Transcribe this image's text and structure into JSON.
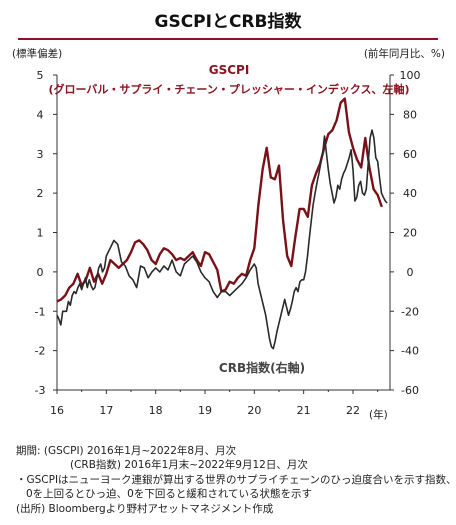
{
  "title": "GSCPIとCRB指数",
  "chart_data": {
    "type": "line",
    "left_axis_label": "(標準偏差)",
    "right_axis_label": "(前年同月比、%)",
    "x_unit_label": "(年)",
    "x_tick_labels": [
      "16",
      "17",
      "18",
      "19",
      "20",
      "21",
      "22"
    ],
    "left_ylim": [
      -3,
      5
    ],
    "left_ticks": [
      "5",
      "4",
      "3",
      "2",
      "1",
      "0",
      "-1",
      "-2",
      "-3"
    ],
    "right_ylim": [
      -60,
      100
    ],
    "right_ticks": [
      "100",
      "80",
      "60",
      "40",
      "20",
      "0",
      "-20",
      "-40",
      "-60"
    ],
    "grid": false,
    "annotations": {
      "gscpi_name": "GSCPI",
      "gscpi_desc": "(グローバル・サプライ・チェーン・プレッシャー・インデックス、左軸)",
      "crb_name": "CRB指数(右軸)"
    },
    "series": [
      {
        "name": "GSCPI",
        "axis": "left",
        "color": "#7a1018",
        "x": [
          2016.0,
          2016.083,
          2016.167,
          2016.25,
          2016.333,
          2016.417,
          2016.5,
          2016.583,
          2016.667,
          2016.75,
          2016.833,
          2016.917,
          2017.0,
          2017.083,
          2017.167,
          2017.25,
          2017.333,
          2017.417,
          2017.5,
          2017.583,
          2017.667,
          2017.75,
          2017.833,
          2017.917,
          2018.0,
          2018.083,
          2018.167,
          2018.25,
          2018.333,
          2018.417,
          2018.5,
          2018.583,
          2018.667,
          2018.75,
          2018.833,
          2018.917,
          2019.0,
          2019.083,
          2019.167,
          2019.25,
          2019.333,
          2019.417,
          2019.5,
          2019.583,
          2019.667,
          2019.75,
          2019.833,
          2019.917,
          2020.0,
          2020.083,
          2020.167,
          2020.25,
          2020.333,
          2020.417,
          2020.5,
          2020.583,
          2020.667,
          2020.75,
          2020.833,
          2020.917,
          2021.0,
          2021.083,
          2021.167,
          2021.25,
          2021.333,
          2021.417,
          2021.5,
          2021.583,
          2021.667,
          2021.75,
          2021.833,
          2021.917,
          2022.0,
          2022.083,
          2022.167,
          2022.25,
          2022.333,
          2022.417,
          2022.5,
          2022.583
        ],
        "values": [
          -0.75,
          -0.7,
          -0.6,
          -0.4,
          -0.3,
          -0.05,
          -0.35,
          -0.2,
          0.1,
          -0.25,
          -0.05,
          -0.3,
          -0.05,
          0.3,
          0.2,
          0.1,
          0.2,
          0.3,
          0.5,
          0.75,
          0.8,
          0.7,
          0.55,
          0.3,
          0.2,
          0.45,
          0.6,
          0.55,
          0.45,
          0.3,
          0.35,
          0.3,
          0.4,
          0.5,
          0.3,
          0.15,
          0.5,
          0.45,
          0.25,
          0.05,
          -0.5,
          -0.45,
          -0.25,
          -0.3,
          -0.15,
          -0.05,
          -0.1,
          0.3,
          0.6,
          1.7,
          2.6,
          3.15,
          2.4,
          2.35,
          2.7,
          1.3,
          0.4,
          0.15,
          0.9,
          1.6,
          1.6,
          1.4,
          2.2,
          2.5,
          2.75,
          3.15,
          3.5,
          3.6,
          3.85,
          4.3,
          4.4,
          3.55,
          3.15,
          2.85,
          2.65,
          3.4,
          2.65,
          2.1,
          1.95,
          1.65
        ]
      },
      {
        "name": "CRB指数",
        "axis": "right",
        "color": "#2a2a2a",
        "x": [
          2016.0,
          2016.038,
          2016.077,
          2016.115,
          2016.154,
          2016.192,
          2016.231,
          2016.269,
          2016.308,
          2016.346,
          2016.385,
          2016.423,
          2016.462,
          2016.5,
          2016.538,
          2016.577,
          2016.615,
          2016.654,
          2016.692,
          2016.731,
          2016.769,
          2016.808,
          2016.846,
          2016.885,
          2016.923,
          2016.962,
          2017.0,
          2017.077,
          2017.154,
          2017.231,
          2017.308,
          2017.385,
          2017.462,
          2017.538,
          2017.615,
          2017.692,
          2017.769,
          2017.846,
          2017.923,
          2018.0,
          2018.083,
          2018.167,
          2018.25,
          2018.333,
          2018.417,
          2018.5,
          2018.583,
          2018.667,
          2018.75,
          2018.833,
          2018.917,
          2019.0,
          2019.083,
          2019.167,
          2019.25,
          2019.333,
          2019.417,
          2019.5,
          2019.583,
          2019.667,
          2019.75,
          2019.833,
          2019.917,
          2020.0,
          2020.038,
          2020.077,
          2020.115,
          2020.154,
          2020.192,
          2020.231,
          2020.269,
          2020.308,
          2020.346,
          2020.385,
          2020.423,
          2020.462,
          2020.5,
          2020.538,
          2020.577,
          2020.615,
          2020.654,
          2020.692,
          2020.731,
          2020.769,
          2020.808,
          2020.846,
          2020.885,
          2020.923,
          2020.962,
          2021.0,
          2021.038,
          2021.077,
          2021.115,
          2021.154,
          2021.192,
          2021.231,
          2021.269,
          2021.308,
          2021.346,
          2021.385,
          2021.423,
          2021.462,
          2021.5,
          2021.538,
          2021.577,
          2021.615,
          2021.654,
          2021.692,
          2021.731,
          2021.769,
          2021.808,
          2021.846,
          2021.885,
          2021.923,
          2021.962,
          2022.0,
          2022.038,
          2022.077,
          2022.115,
          2022.154,
          2022.192,
          2022.231,
          2022.269,
          2022.308,
          2022.346,
          2022.385,
          2022.423,
          2022.462,
          2022.5,
          2022.538,
          2022.577,
          2022.615,
          2022.654,
          2022.692
        ],
        "values": [
          -22,
          -24,
          -27,
          -20,
          -20,
          -20,
          -15,
          -17,
          -12,
          -10,
          -11,
          -8,
          -6,
          -9,
          -6,
          -3,
          -8,
          -4,
          -7,
          -9,
          -8,
          -3,
          2,
          4,
          0,
          2,
          8,
          12,
          16,
          14,
          5,
          3,
          -2,
          -4,
          -8,
          3,
          2,
          -3,
          0,
          2,
          0,
          3,
          1,
          6,
          0,
          -2,
          4,
          6,
          8,
          5,
          0,
          -3,
          -5,
          -10,
          -13,
          -10,
          -10,
          -12,
          -10,
          -8,
          -6,
          -3,
          1,
          4,
          2,
          -6,
          -10,
          -14,
          -18,
          -22,
          -28,
          -34,
          -38,
          -39,
          -35,
          -30,
          -26,
          -22,
          -18,
          -14,
          -18,
          -22,
          -19,
          -15,
          -10,
          -8,
          -10,
          -5,
          -4,
          -4,
          0,
          8,
          17,
          26,
          34,
          40,
          45,
          50,
          55,
          60,
          69,
          60,
          52,
          45,
          40,
          35,
          38,
          44,
          42,
          47,
          50,
          52,
          55,
          58,
          62,
          52,
          36,
          38,
          44,
          46,
          40,
          39,
          42,
          55,
          68,
          72,
          68,
          58,
          56,
          48,
          40,
          38,
          36,
          35
        ]
      }
    ]
  },
  "notes": {
    "period_label": "期間:",
    "period_line1": "(GSCPI) 2016年1月~2022年8月、月次",
    "period_line2": "(CRB指数) 2016年1月末~2022年9月12日、月次",
    "gscpi_line1": "・GSCPIはニューヨーク連銀が算出する世界のサプライチェーンのひっ迫度合いを示す指数、",
    "gscpi_line2": "0を上回るとひっ迫、0を下回ると緩和されている状態を示す",
    "source": "(出所) Bloombergより野村アセットマネジメント作成"
  }
}
